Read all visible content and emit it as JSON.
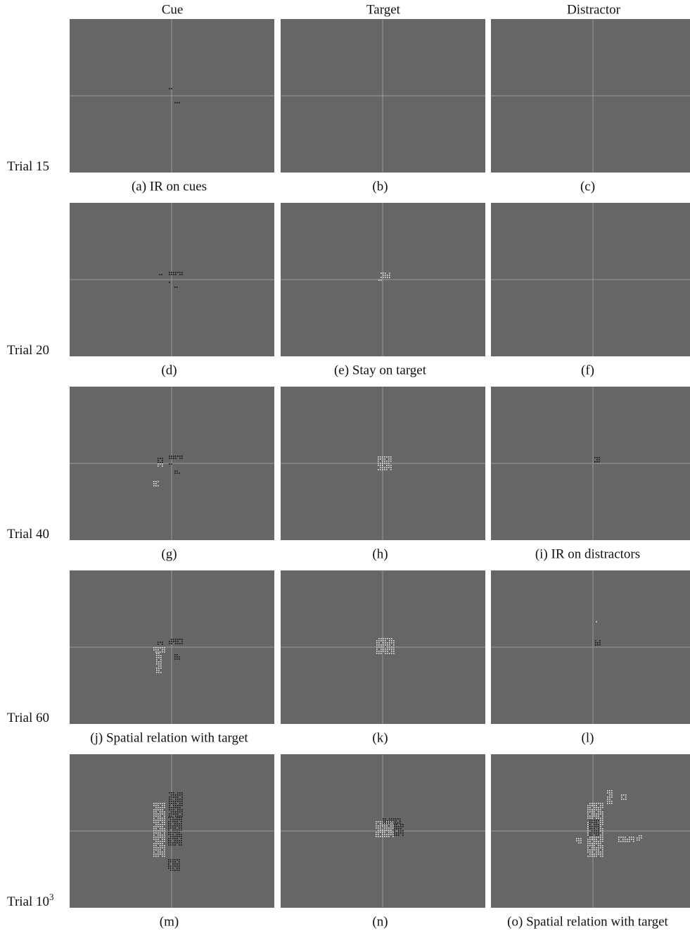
{
  "columns": [
    "Cue",
    "Target",
    "Distractor"
  ],
  "rows": [
    {
      "label": "Trial 15",
      "captions": [
        "(a) IR on cues",
        "(b)",
        "(c)"
      ]
    },
    {
      "label": "Trial 20",
      "captions": [
        "(d)",
        "(e) Stay on target",
        "(f)"
      ]
    },
    {
      "label": "Trial 40",
      "captions": [
        "(g)",
        "(h)",
        "(i) IR on distractors"
      ]
    },
    {
      "label": "Trial 60",
      "captions": [
        "(j) Spatial relation with target",
        "(k)",
        "(l)"
      ]
    },
    {
      "label": "Trial 10",
      "label_superscript": "3",
      "captions": [
        "(m)",
        "(n)",
        "(o) Spatial relation with target"
      ]
    }
  ]
}
